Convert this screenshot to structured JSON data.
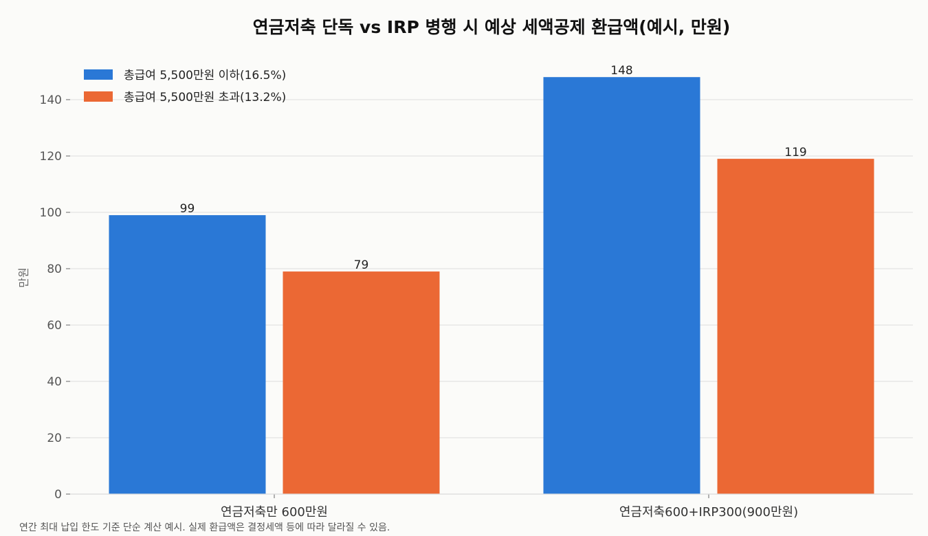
{
  "chart_data": {
    "type": "bar",
    "title": "연금저축 단독 vs IRP 병행 시 예상 세액공제 환급액(예시, 만원)",
    "xlabel": "",
    "ylabel": "만원",
    "categories": [
      "연금저축만 600만원",
      "연금저축600+IRP300(900만원)"
    ],
    "series": [
      {
        "name": "총급여 5,500만원 이하(16.5%)",
        "values": [
          99,
          148
        ],
        "color": "#2a78d6"
      },
      {
        "name": "총급여 5,500만원 초과(13.2%)",
        "values": [
          79,
          119
        ],
        "color": "#eb6834"
      }
    ],
    "ylim": [
      0,
      150
    ],
    "yticks": [
      0,
      20,
      40,
      60,
      80,
      100,
      120,
      140
    ],
    "grid": true,
    "legend_position": "top-left",
    "footnote": "연간 최대 납입 한도 기준 단순 계산 예시. 실제 환급액은 결정세액 등에 따라 달라질 수 있음."
  }
}
